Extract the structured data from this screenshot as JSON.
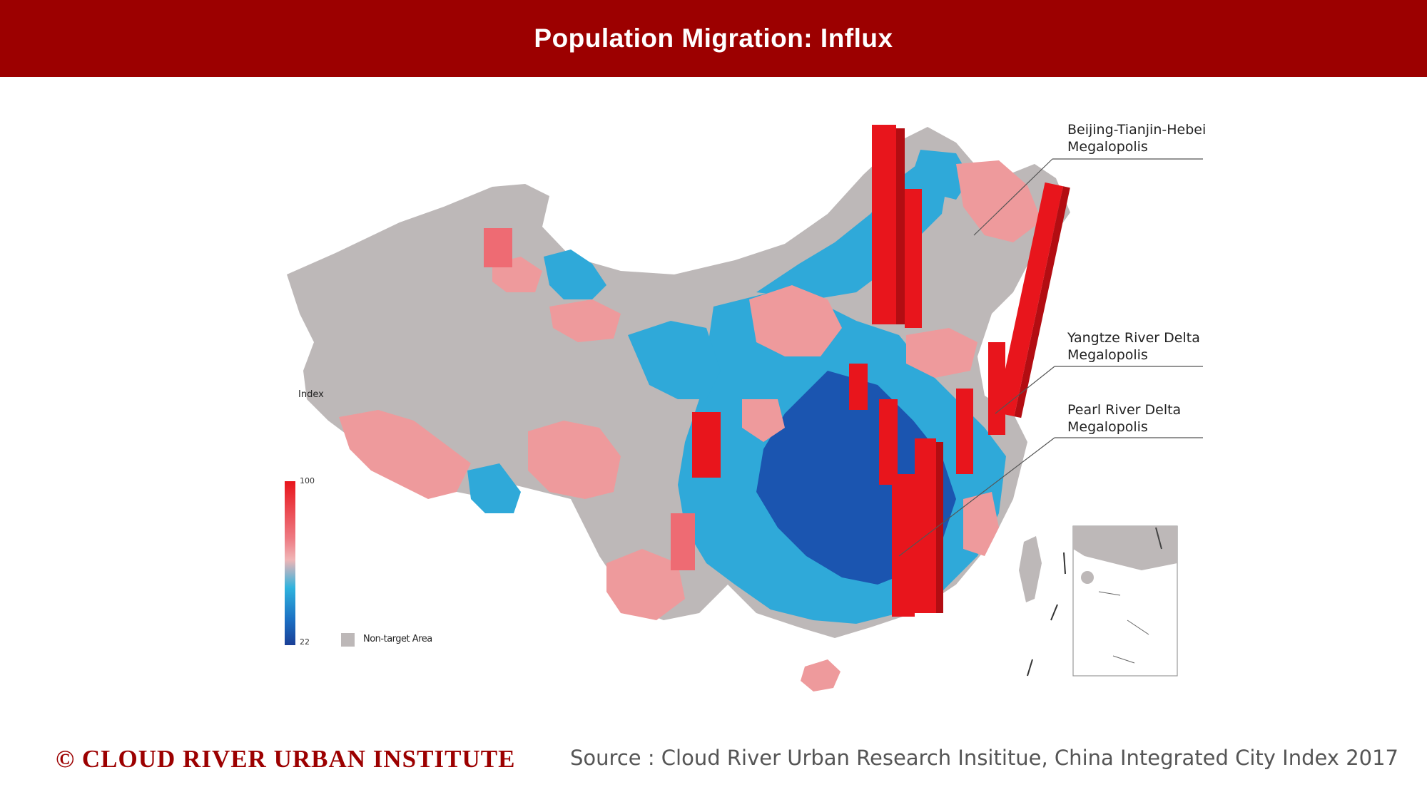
{
  "header": {
    "title": "Population Migration: Influx"
  },
  "callouts": [
    {
      "label": "Beijing-Tianjin-Hebei\nMegalopolis"
    },
    {
      "label": "Yangtze River Delta\nMegalopolis"
    },
    {
      "label": "Pearl River Delta\nMegalopolis"
    }
  ],
  "legend": {
    "title": "Index",
    "max": "100",
    "min": "22",
    "non_target": "Non-target Area",
    "colors": {
      "high": "#e8151c",
      "mid": "#f0b5b6",
      "low_light": "#2fb3de",
      "low_dark": "#1a3f96",
      "non_target": "#bdb8b8"
    }
  },
  "footer": {
    "brand": "© CLOUD RIVER URBAN INSTITUTE",
    "source": "Source : Cloud River Urban Research Insititue, China Integrated City Index 2017"
  },
  "colors": {
    "brand": "#9c0000",
    "spike": "#e8151c",
    "pink": "#ee9a9c",
    "blue": "#2fa9d9",
    "navy": "#1b55b0",
    "grey": "#bdb8b8"
  }
}
